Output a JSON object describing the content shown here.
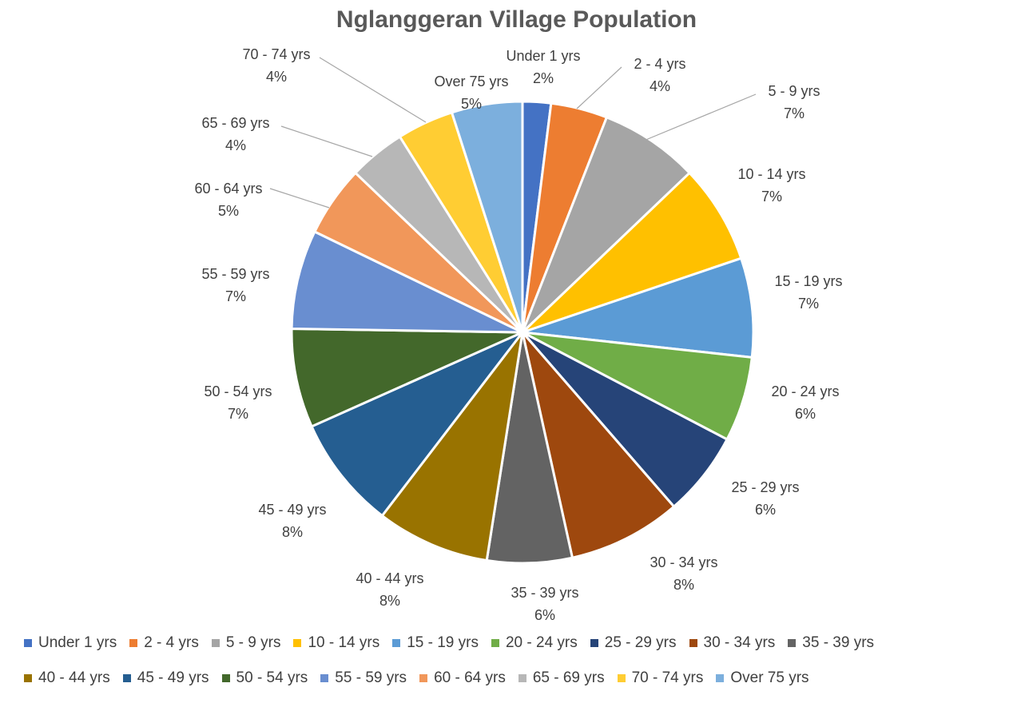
{
  "chart_data": {
    "type": "pie",
    "title": "Nglanggeran Village Population",
    "categories": [
      "Under 1 yrs",
      "2 - 4 yrs",
      "5 - 9 yrs",
      "10 - 14 yrs",
      "15 - 19 yrs",
      "20 - 24 yrs",
      "25 - 29 yrs",
      "30 - 34 yrs",
      "35 - 39 yrs",
      "40 - 44 yrs",
      "45 - 49 yrs",
      "50 - 54 yrs",
      "55 - 59 yrs",
      "60 - 64 yrs",
      "65 - 69 yrs",
      "70 - 74 yrs",
      "Over 75 yrs"
    ],
    "values": [
      2,
      4,
      7,
      7,
      7,
      6,
      6,
      8,
      6,
      8,
      8,
      7,
      7,
      5,
      4,
      4,
      5
    ],
    "value_labels": [
      "2%",
      "4%",
      "7%",
      "7%",
      "7%",
      "6%",
      "6%",
      "8%",
      "6%",
      "8%",
      "8%",
      "7%",
      "7%",
      "5%",
      "4%",
      "4%",
      "5%"
    ],
    "colors": [
      "#4472C4",
      "#ED7D31",
      "#A5A5A5",
      "#FFC000",
      "#5B9BD5",
      "#70AD47",
      "#264478",
      "#9E480E",
      "#636363",
      "#997300",
      "#255E91",
      "#43682B",
      "#698ED0",
      "#F1975A",
      "#B7B7B7",
      "#FFCD33",
      "#7CAFDD"
    ],
    "legend_position": "bottom"
  }
}
